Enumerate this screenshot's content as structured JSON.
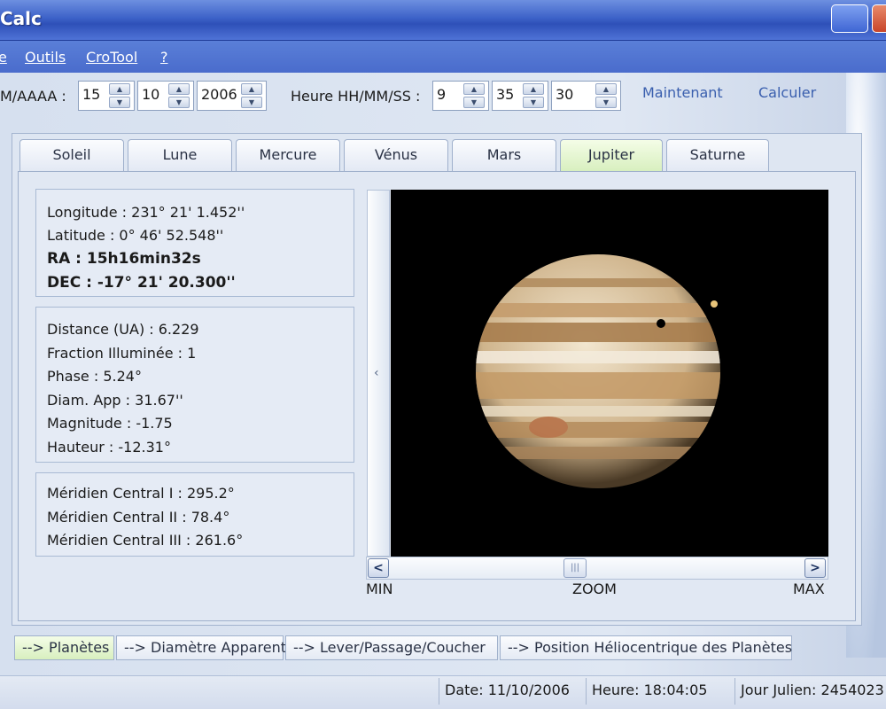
{
  "window": {
    "title": "Calc"
  },
  "menu": [
    "e",
    "Outils",
    "CroTool",
    "?"
  ],
  "toolbar": {
    "date_label": "M/AAAA :",
    "day": "15",
    "month": "10",
    "year": "2006",
    "time_label": "Heure HH/MM/SS :",
    "hour": "9",
    "minute": "35",
    "second": "30",
    "now_label": "Maintenant",
    "calc_label": "Calculer"
  },
  "tabs": [
    "Soleil",
    "Lune",
    "Mercure",
    "Vénus",
    "Mars",
    "Jupiter",
    "Saturne"
  ],
  "active_tab": "Jupiter",
  "position": {
    "longitude": "Longitude : 231° 21' 1.452''",
    "latitude": "Latitude : 0° 46' 52.548''",
    "ra": "RA : 15h16min32s",
    "dec": "DEC : -17° 21' 20.300''"
  },
  "physical": {
    "distance": "Distance (UA) : 6.229",
    "fraction": "Fraction Illuminée : 1",
    "phase": "Phase : 5.24°",
    "diam": "Diam. App : 31.67''",
    "magnitude": "Magnitude : -1.75",
    "hauteur": "Hauteur : -12.31°"
  },
  "meridians": {
    "m1": "Méridien Central I : 295.2°",
    "m2": "Méridien Central II : 78.4°",
    "m3": "Méridien Central III : 261.6°"
  },
  "viewer": {
    "collapse_glyph": "‹",
    "scroll_left": "<",
    "scroll_right": ">",
    "min_label": "MIN",
    "zoom_label": "ZOOM",
    "max_label": "MAX"
  },
  "bottom_tabs": [
    "--> Planètes",
    "--> Diamètre Apparent",
    "--> Lever/Passage/Coucher",
    "--> Position Héliocentrique des Planètes"
  ],
  "status": {
    "date": "Date: 11/10/2006",
    "heure": "Heure: 18:04:05",
    "jour": "Jour Julien: 2454023"
  },
  "colors": {
    "titlebar": "#3d62c8",
    "active_tab": "#d8efbf",
    "link": "#3a5fae"
  }
}
